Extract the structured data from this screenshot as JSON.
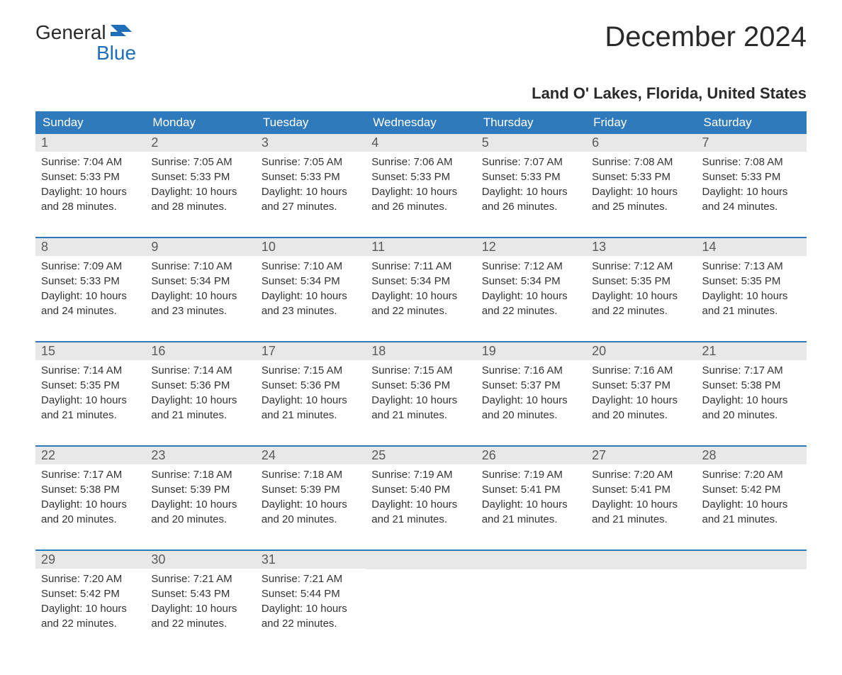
{
  "logo": {
    "general": "General",
    "blue": "Blue"
  },
  "title": "December 2024",
  "location": "Land O' Lakes, Florida, United States",
  "colors": {
    "header_bg": "#2f79bd",
    "header_text": "#ffffff",
    "day_num_bg": "#e8e8e8",
    "day_num_text": "#5a5a5a",
    "body_text": "#333333",
    "week_border": "#2f79bd",
    "logo_blue": "#1e6fb8",
    "logo_dark": "#2a2a2a"
  },
  "typography": {
    "title_fontsize": 40,
    "location_fontsize": 22,
    "dow_fontsize": 17,
    "day_num_fontsize": 18,
    "day_body_fontsize": 15
  },
  "dow": [
    "Sunday",
    "Monday",
    "Tuesday",
    "Wednesday",
    "Thursday",
    "Friday",
    "Saturday"
  ],
  "weeks": [
    [
      {
        "n": "1",
        "sunrise": "Sunrise: 7:04 AM",
        "sunset": "Sunset: 5:33 PM",
        "d1": "Daylight: 10 hours",
        "d2": "and 28 minutes."
      },
      {
        "n": "2",
        "sunrise": "Sunrise: 7:05 AM",
        "sunset": "Sunset: 5:33 PM",
        "d1": "Daylight: 10 hours",
        "d2": "and 28 minutes."
      },
      {
        "n": "3",
        "sunrise": "Sunrise: 7:05 AM",
        "sunset": "Sunset: 5:33 PM",
        "d1": "Daylight: 10 hours",
        "d2": "and 27 minutes."
      },
      {
        "n": "4",
        "sunrise": "Sunrise: 7:06 AM",
        "sunset": "Sunset: 5:33 PM",
        "d1": "Daylight: 10 hours",
        "d2": "and 26 minutes."
      },
      {
        "n": "5",
        "sunrise": "Sunrise: 7:07 AM",
        "sunset": "Sunset: 5:33 PM",
        "d1": "Daylight: 10 hours",
        "d2": "and 26 minutes."
      },
      {
        "n": "6",
        "sunrise": "Sunrise: 7:08 AM",
        "sunset": "Sunset: 5:33 PM",
        "d1": "Daylight: 10 hours",
        "d2": "and 25 minutes."
      },
      {
        "n": "7",
        "sunrise": "Sunrise: 7:08 AM",
        "sunset": "Sunset: 5:33 PM",
        "d1": "Daylight: 10 hours",
        "d2": "and 24 minutes."
      }
    ],
    [
      {
        "n": "8",
        "sunrise": "Sunrise: 7:09 AM",
        "sunset": "Sunset: 5:33 PM",
        "d1": "Daylight: 10 hours",
        "d2": "and 24 minutes."
      },
      {
        "n": "9",
        "sunrise": "Sunrise: 7:10 AM",
        "sunset": "Sunset: 5:34 PM",
        "d1": "Daylight: 10 hours",
        "d2": "and 23 minutes."
      },
      {
        "n": "10",
        "sunrise": "Sunrise: 7:10 AM",
        "sunset": "Sunset: 5:34 PM",
        "d1": "Daylight: 10 hours",
        "d2": "and 23 minutes."
      },
      {
        "n": "11",
        "sunrise": "Sunrise: 7:11 AM",
        "sunset": "Sunset: 5:34 PM",
        "d1": "Daylight: 10 hours",
        "d2": "and 22 minutes."
      },
      {
        "n": "12",
        "sunrise": "Sunrise: 7:12 AM",
        "sunset": "Sunset: 5:34 PM",
        "d1": "Daylight: 10 hours",
        "d2": "and 22 minutes."
      },
      {
        "n": "13",
        "sunrise": "Sunrise: 7:12 AM",
        "sunset": "Sunset: 5:35 PM",
        "d1": "Daylight: 10 hours",
        "d2": "and 22 minutes."
      },
      {
        "n": "14",
        "sunrise": "Sunrise: 7:13 AM",
        "sunset": "Sunset: 5:35 PM",
        "d1": "Daylight: 10 hours",
        "d2": "and 21 minutes."
      }
    ],
    [
      {
        "n": "15",
        "sunrise": "Sunrise: 7:14 AM",
        "sunset": "Sunset: 5:35 PM",
        "d1": "Daylight: 10 hours",
        "d2": "and 21 minutes."
      },
      {
        "n": "16",
        "sunrise": "Sunrise: 7:14 AM",
        "sunset": "Sunset: 5:36 PM",
        "d1": "Daylight: 10 hours",
        "d2": "and 21 minutes."
      },
      {
        "n": "17",
        "sunrise": "Sunrise: 7:15 AM",
        "sunset": "Sunset: 5:36 PM",
        "d1": "Daylight: 10 hours",
        "d2": "and 21 minutes."
      },
      {
        "n": "18",
        "sunrise": "Sunrise: 7:15 AM",
        "sunset": "Sunset: 5:36 PM",
        "d1": "Daylight: 10 hours",
        "d2": "and 21 minutes."
      },
      {
        "n": "19",
        "sunrise": "Sunrise: 7:16 AM",
        "sunset": "Sunset: 5:37 PM",
        "d1": "Daylight: 10 hours",
        "d2": "and 20 minutes."
      },
      {
        "n": "20",
        "sunrise": "Sunrise: 7:16 AM",
        "sunset": "Sunset: 5:37 PM",
        "d1": "Daylight: 10 hours",
        "d2": "and 20 minutes."
      },
      {
        "n": "21",
        "sunrise": "Sunrise: 7:17 AM",
        "sunset": "Sunset: 5:38 PM",
        "d1": "Daylight: 10 hours",
        "d2": "and 20 minutes."
      }
    ],
    [
      {
        "n": "22",
        "sunrise": "Sunrise: 7:17 AM",
        "sunset": "Sunset: 5:38 PM",
        "d1": "Daylight: 10 hours",
        "d2": "and 20 minutes."
      },
      {
        "n": "23",
        "sunrise": "Sunrise: 7:18 AM",
        "sunset": "Sunset: 5:39 PM",
        "d1": "Daylight: 10 hours",
        "d2": "and 20 minutes."
      },
      {
        "n": "24",
        "sunrise": "Sunrise: 7:18 AM",
        "sunset": "Sunset: 5:39 PM",
        "d1": "Daylight: 10 hours",
        "d2": "and 20 minutes."
      },
      {
        "n": "25",
        "sunrise": "Sunrise: 7:19 AM",
        "sunset": "Sunset: 5:40 PM",
        "d1": "Daylight: 10 hours",
        "d2": "and 21 minutes."
      },
      {
        "n": "26",
        "sunrise": "Sunrise: 7:19 AM",
        "sunset": "Sunset: 5:41 PM",
        "d1": "Daylight: 10 hours",
        "d2": "and 21 minutes."
      },
      {
        "n": "27",
        "sunrise": "Sunrise: 7:20 AM",
        "sunset": "Sunset: 5:41 PM",
        "d1": "Daylight: 10 hours",
        "d2": "and 21 minutes."
      },
      {
        "n": "28",
        "sunrise": "Sunrise: 7:20 AM",
        "sunset": "Sunset: 5:42 PM",
        "d1": "Daylight: 10 hours",
        "d2": "and 21 minutes."
      }
    ],
    [
      {
        "n": "29",
        "sunrise": "Sunrise: 7:20 AM",
        "sunset": "Sunset: 5:42 PM",
        "d1": "Daylight: 10 hours",
        "d2": "and 22 minutes."
      },
      {
        "n": "30",
        "sunrise": "Sunrise: 7:21 AM",
        "sunset": "Sunset: 5:43 PM",
        "d1": "Daylight: 10 hours",
        "d2": "and 22 minutes."
      },
      {
        "n": "31",
        "sunrise": "Sunrise: 7:21 AM",
        "sunset": "Sunset: 5:44 PM",
        "d1": "Daylight: 10 hours",
        "d2": "and 22 minutes."
      },
      null,
      null,
      null,
      null
    ]
  ]
}
